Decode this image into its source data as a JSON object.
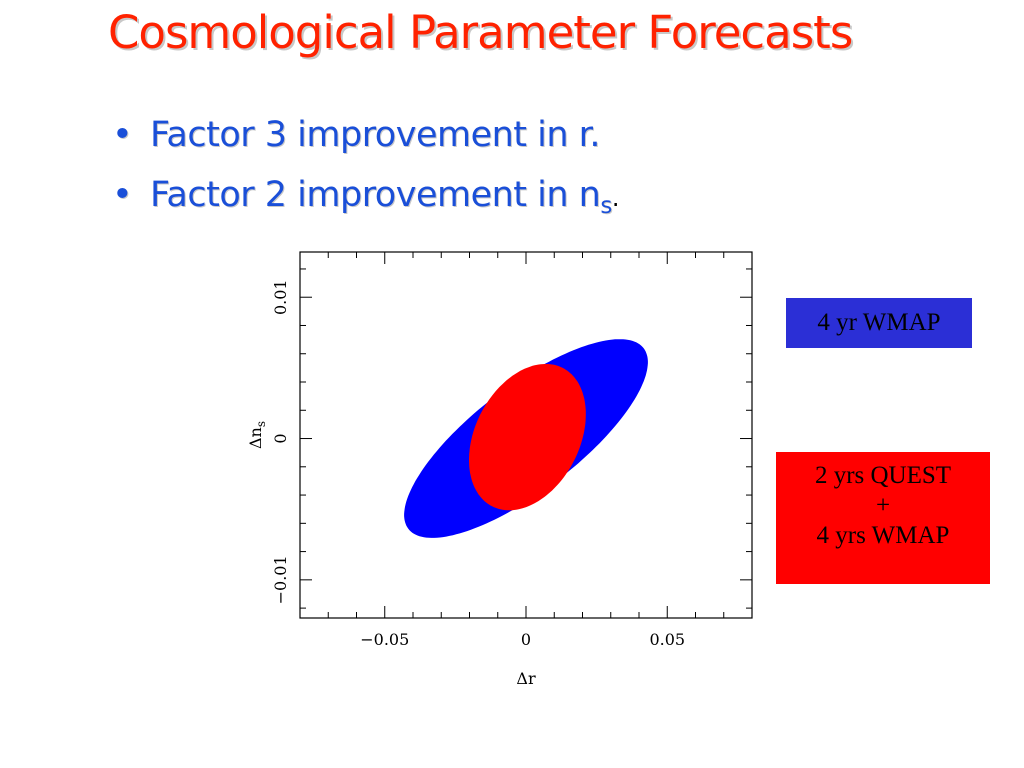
{
  "title": "Cosmological Parameter Forecasts",
  "bullets": [
    {
      "bullet": "•",
      "text": "Factor 3 improvement in r."
    },
    {
      "bullet": "•",
      "text": "Factor 2 improvement in n",
      "subscript": "s",
      "suffix": "."
    }
  ],
  "chart_data": {
    "type": "scatter",
    "xlabel": "Δr",
    "ylabel": "Δn",
    "ylabel_subscript": "s",
    "xlim": [
      -0.08,
      0.08
    ],
    "ylim": [
      -0.0127,
      0.0132
    ],
    "xticks": [
      {
        "value": -0.05,
        "label": "−0.05"
      },
      {
        "value": 0,
        "label": "0"
      },
      {
        "value": 0.05,
        "label": "0.05"
      }
    ],
    "yticks": [
      {
        "value": -0.01,
        "label": "−0.01"
      },
      {
        "value": 0,
        "label": "0"
      },
      {
        "value": 0.01,
        "label": "0.01"
      }
    ],
    "series": [
      {
        "name": "4 yr WMAP",
        "shape": "ellipse",
        "color": "#0000ff",
        "center": [
          0,
          0
        ],
        "semi_major": 0.0525,
        "semi_minor": 0.0185,
        "angle_deg": 37.5
      },
      {
        "name": "2 yrs QUEST + 4 yrs WMAP",
        "shape": "ellipse",
        "color": "#ff0000",
        "center": [
          0.0005,
          0.0001
        ],
        "semi_major": 0.0275,
        "semi_minor": 0.0185,
        "angle_deg": 63
      }
    ]
  },
  "legend": {
    "wmap": {
      "text": "4 yr WMAP",
      "color": "#2b2fd6"
    },
    "quest": {
      "lines": [
        "2 yrs QUEST",
        "+",
        "4 yrs WMAP"
      ],
      "color": "#ff0000"
    }
  }
}
